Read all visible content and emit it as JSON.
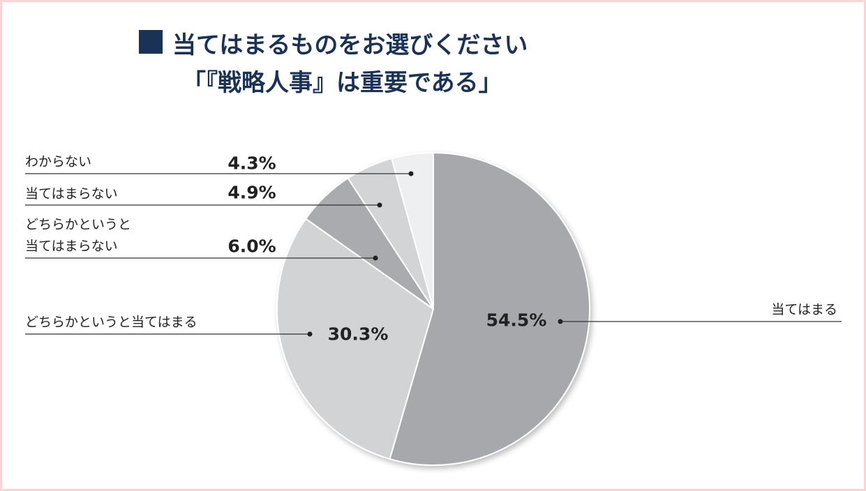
{
  "chart_data": {
    "type": "pie",
    "title": "当てはまるものをお選びください",
    "subtitle": "「『戦略人事』は重要である」",
    "categories": [
      "当てはまる",
      "どちらかというと当てはまる",
      "どちらかというと\n当てはまらない",
      "当てはまらない",
      "わからない"
    ],
    "values": [
      54.5,
      30.3,
      6.0,
      4.9,
      4.3
    ],
    "value_labels": [
      "54.5%",
      "30.3%",
      "6.0%",
      "4.9%",
      "4.3%"
    ],
    "colors": [
      "#a6a8ab",
      "#d2d3d5",
      "#a9abae",
      "#d3d4d6",
      "#eeeff0"
    ]
  }
}
